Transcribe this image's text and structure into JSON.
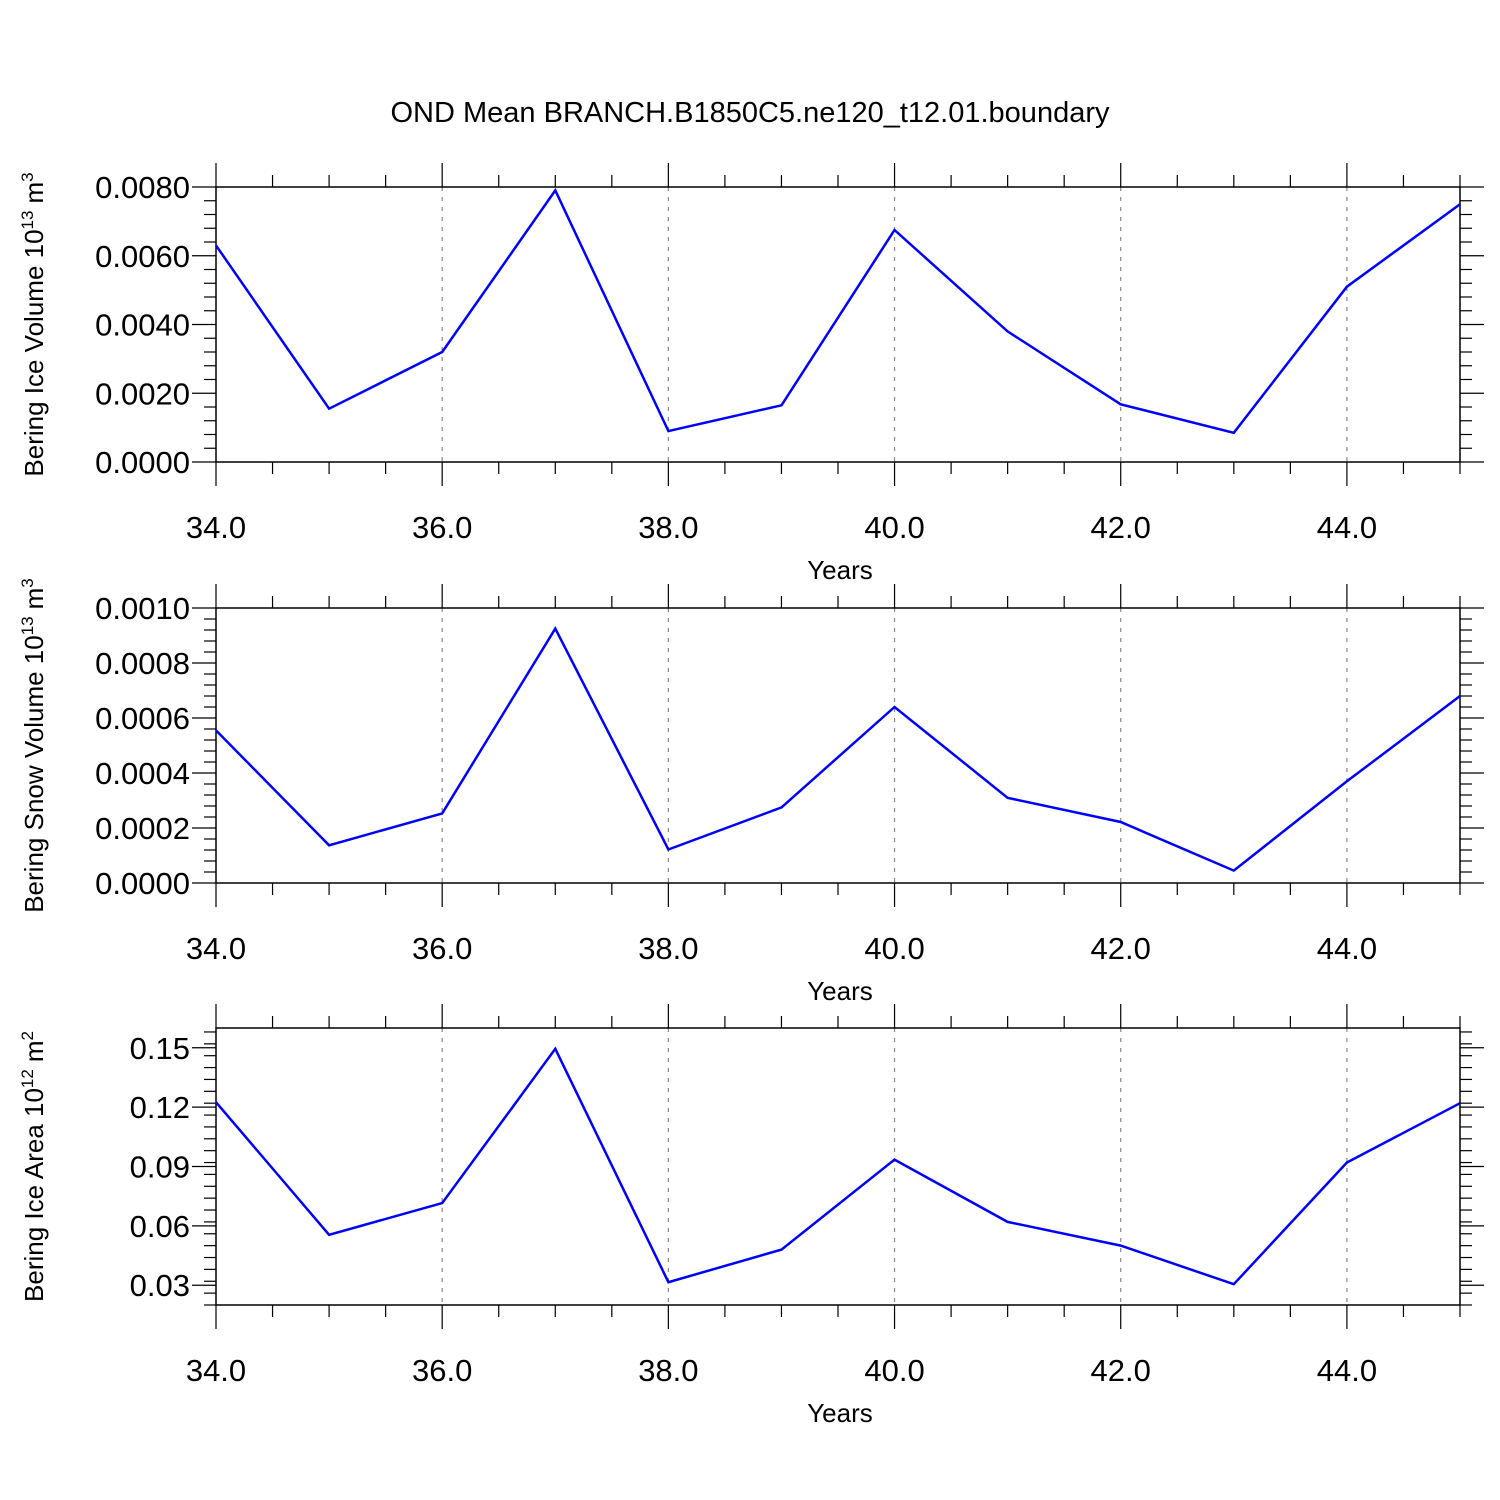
{
  "title": "OND Mean BRANCH.B1850C5.ne120_t12.01.boundary",
  "colors": {
    "line": "#0000ff"
  },
  "chart_data": [
    {
      "type": "line",
      "ylabel": "Bering Ice Volume 10",
      "ylabel_exponent": "13",
      "ylabel_unit": "m",
      "ylabel_unit_exponent": "3",
      "xlabel": "Years",
      "x": [
        34,
        35,
        36,
        37,
        38,
        39,
        40,
        41,
        42,
        43,
        44,
        45
      ],
      "series": [
        {
          "values": [
            0.0063,
            0.00155,
            0.0032,
            0.0079,
            0.0009,
            0.00165,
            0.00675,
            0.0038,
            0.00168,
            0.00085,
            0.0051,
            0.0075
          ]
        }
      ],
      "xlim": [
        34,
        45
      ],
      "ylim": [
        0,
        0.008
      ],
      "xticks": [
        34,
        36,
        38,
        40,
        42,
        44
      ],
      "xtick_labels": [
        "34.0",
        "36.0",
        "38.0",
        "40.0",
        "42.0",
        "44.0"
      ],
      "yticks": [
        0,
        0.002,
        0.004,
        0.006,
        0.008
      ],
      "ytick_labels": [
        "0.0000",
        "0.0020",
        "0.0040",
        "0.0060",
        "0.0080"
      ],
      "grid": "vertical dashed at major x ticks"
    },
    {
      "type": "line",
      "ylabel": "Bering Snow Volume 10",
      "ylabel_exponent": "13",
      "ylabel_unit": "m",
      "ylabel_unit_exponent": "3",
      "xlabel": "Years",
      "x": [
        34,
        35,
        36,
        37,
        38,
        39,
        40,
        41,
        42,
        43,
        44,
        45
      ],
      "series": [
        {
          "values": [
            0.000555,
            0.000137,
            0.000253,
            0.000925,
            0.000122,
            0.000275,
            0.00064,
            0.00031,
            0.000222,
            4.5e-05,
            0.00037,
            0.00068
          ]
        }
      ],
      "xlim": [
        34,
        45
      ],
      "ylim": [
        0,
        0.001
      ],
      "xticks": [
        34,
        36,
        38,
        40,
        42,
        44
      ],
      "xtick_labels": [
        "34.0",
        "36.0",
        "38.0",
        "40.0",
        "42.0",
        "44.0"
      ],
      "yticks": [
        0,
        0.0002,
        0.0004,
        0.0006,
        0.0008,
        0.001
      ],
      "ytick_labels": [
        "0.0000",
        "0.0002",
        "0.0004",
        "0.0006",
        "0.0008",
        "0.0010"
      ],
      "grid": "vertical dashed at major x ticks"
    },
    {
      "type": "line",
      "ylabel": "Bering Ice Area 10",
      "ylabel_exponent": "12",
      "ylabel_unit": "m",
      "ylabel_unit_exponent": "2",
      "xlabel": "Years",
      "x": [
        34,
        35,
        36,
        37,
        38,
        39,
        40,
        41,
        42,
        43,
        44,
        45
      ],
      "series": [
        {
          "values": [
            0.1225,
            0.0555,
            0.0715,
            0.1495,
            0.0315,
            0.048,
            0.0935,
            0.062,
            0.05,
            0.0305,
            0.092,
            0.122
          ]
        }
      ],
      "xlim": [
        34,
        45
      ],
      "ylim": [
        0.02,
        0.16
      ],
      "xticks": [
        34,
        36,
        38,
        40,
        42,
        44
      ],
      "xtick_labels": [
        "34.0",
        "36.0",
        "38.0",
        "40.0",
        "42.0",
        "44.0"
      ],
      "yticks": [
        0.03,
        0.06,
        0.09,
        0.12,
        0.15
      ],
      "ytick_labels": [
        "0.03",
        "0.06",
        "0.09",
        "0.12",
        "0.15"
      ],
      "grid": "vertical dashed at major x ticks"
    }
  ]
}
